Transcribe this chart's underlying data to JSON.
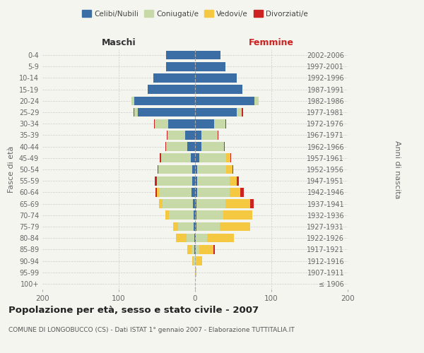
{
  "age_groups": [
    "100+",
    "95-99",
    "90-94",
    "85-89",
    "80-84",
    "75-79",
    "70-74",
    "65-69",
    "60-64",
    "55-59",
    "50-54",
    "45-49",
    "40-44",
    "35-39",
    "30-34",
    "25-29",
    "20-24",
    "15-19",
    "10-14",
    "5-9",
    "0-4"
  ],
  "birth_years": [
    "≤ 1906",
    "1907-1911",
    "1912-1916",
    "1917-1921",
    "1922-1926",
    "1927-1931",
    "1932-1936",
    "1937-1941",
    "1942-1946",
    "1947-1951",
    "1952-1956",
    "1957-1961",
    "1962-1966",
    "1967-1971",
    "1972-1976",
    "1977-1981",
    "1982-1986",
    "1987-1991",
    "1992-1996",
    "1997-2001",
    "2002-2006"
  ],
  "male_celibe": [
    0,
    0,
    0,
    1,
    1,
    2,
    2,
    3,
    5,
    4,
    4,
    6,
    10,
    13,
    35,
    75,
    80,
    62,
    55,
    38,
    38
  ],
  "male_coniugato": [
    0,
    0,
    2,
    4,
    10,
    20,
    32,
    40,
    42,
    46,
    44,
    38,
    28,
    23,
    18,
    5,
    3,
    0,
    0,
    0,
    0
  ],
  "male_vedovo": [
    0,
    0,
    2,
    5,
    14,
    7,
    5,
    4,
    3,
    0,
    0,
    0,
    0,
    0,
    0,
    0,
    0,
    0,
    0,
    0,
    0
  ],
  "male_divorziato": [
    0,
    0,
    0,
    0,
    0,
    0,
    0,
    0,
    2,
    3,
    1,
    2,
    1,
    1,
    1,
    1,
    0,
    0,
    0,
    0,
    0
  ],
  "female_nubile": [
    0,
    0,
    0,
    1,
    1,
    2,
    2,
    2,
    3,
    3,
    3,
    6,
    8,
    8,
    25,
    55,
    78,
    62,
    55,
    40,
    33
  ],
  "female_coniugata": [
    0,
    0,
    1,
    5,
    15,
    30,
    35,
    38,
    42,
    42,
    38,
    35,
    30,
    22,
    15,
    6,
    5,
    0,
    0,
    0,
    0
  ],
  "female_vedova": [
    0,
    2,
    8,
    18,
    35,
    40,
    38,
    32,
    14,
    10,
    8,
    5,
    0,
    0,
    0,
    0,
    0,
    0,
    0,
    0,
    0
  ],
  "female_divorziata": [
    0,
    0,
    0,
    2,
    0,
    0,
    0,
    5,
    5,
    2,
    1,
    1,
    1,
    1,
    1,
    2,
    0,
    0,
    0,
    0,
    0
  ],
  "colors": {
    "celibe": "#3b6ea5",
    "coniugato": "#c8d9a8",
    "vedovo": "#f5c842",
    "divorziato": "#cc2222"
  },
  "title": "Popolazione per età, sesso e stato civile - 2007",
  "subtitle": "COMUNE DI LONGOBUCCO (CS) - Dati ISTAT 1° gennaio 2007 - Elaborazione TUTTITALIA.IT",
  "xlabel_left": "Maschi",
  "xlabel_right": "Femmine",
  "ylabel_left": "Fasce di età",
  "ylabel_right": "Anni di nascita",
  "xlim": 200,
  "background_color": "#f5f5f0"
}
